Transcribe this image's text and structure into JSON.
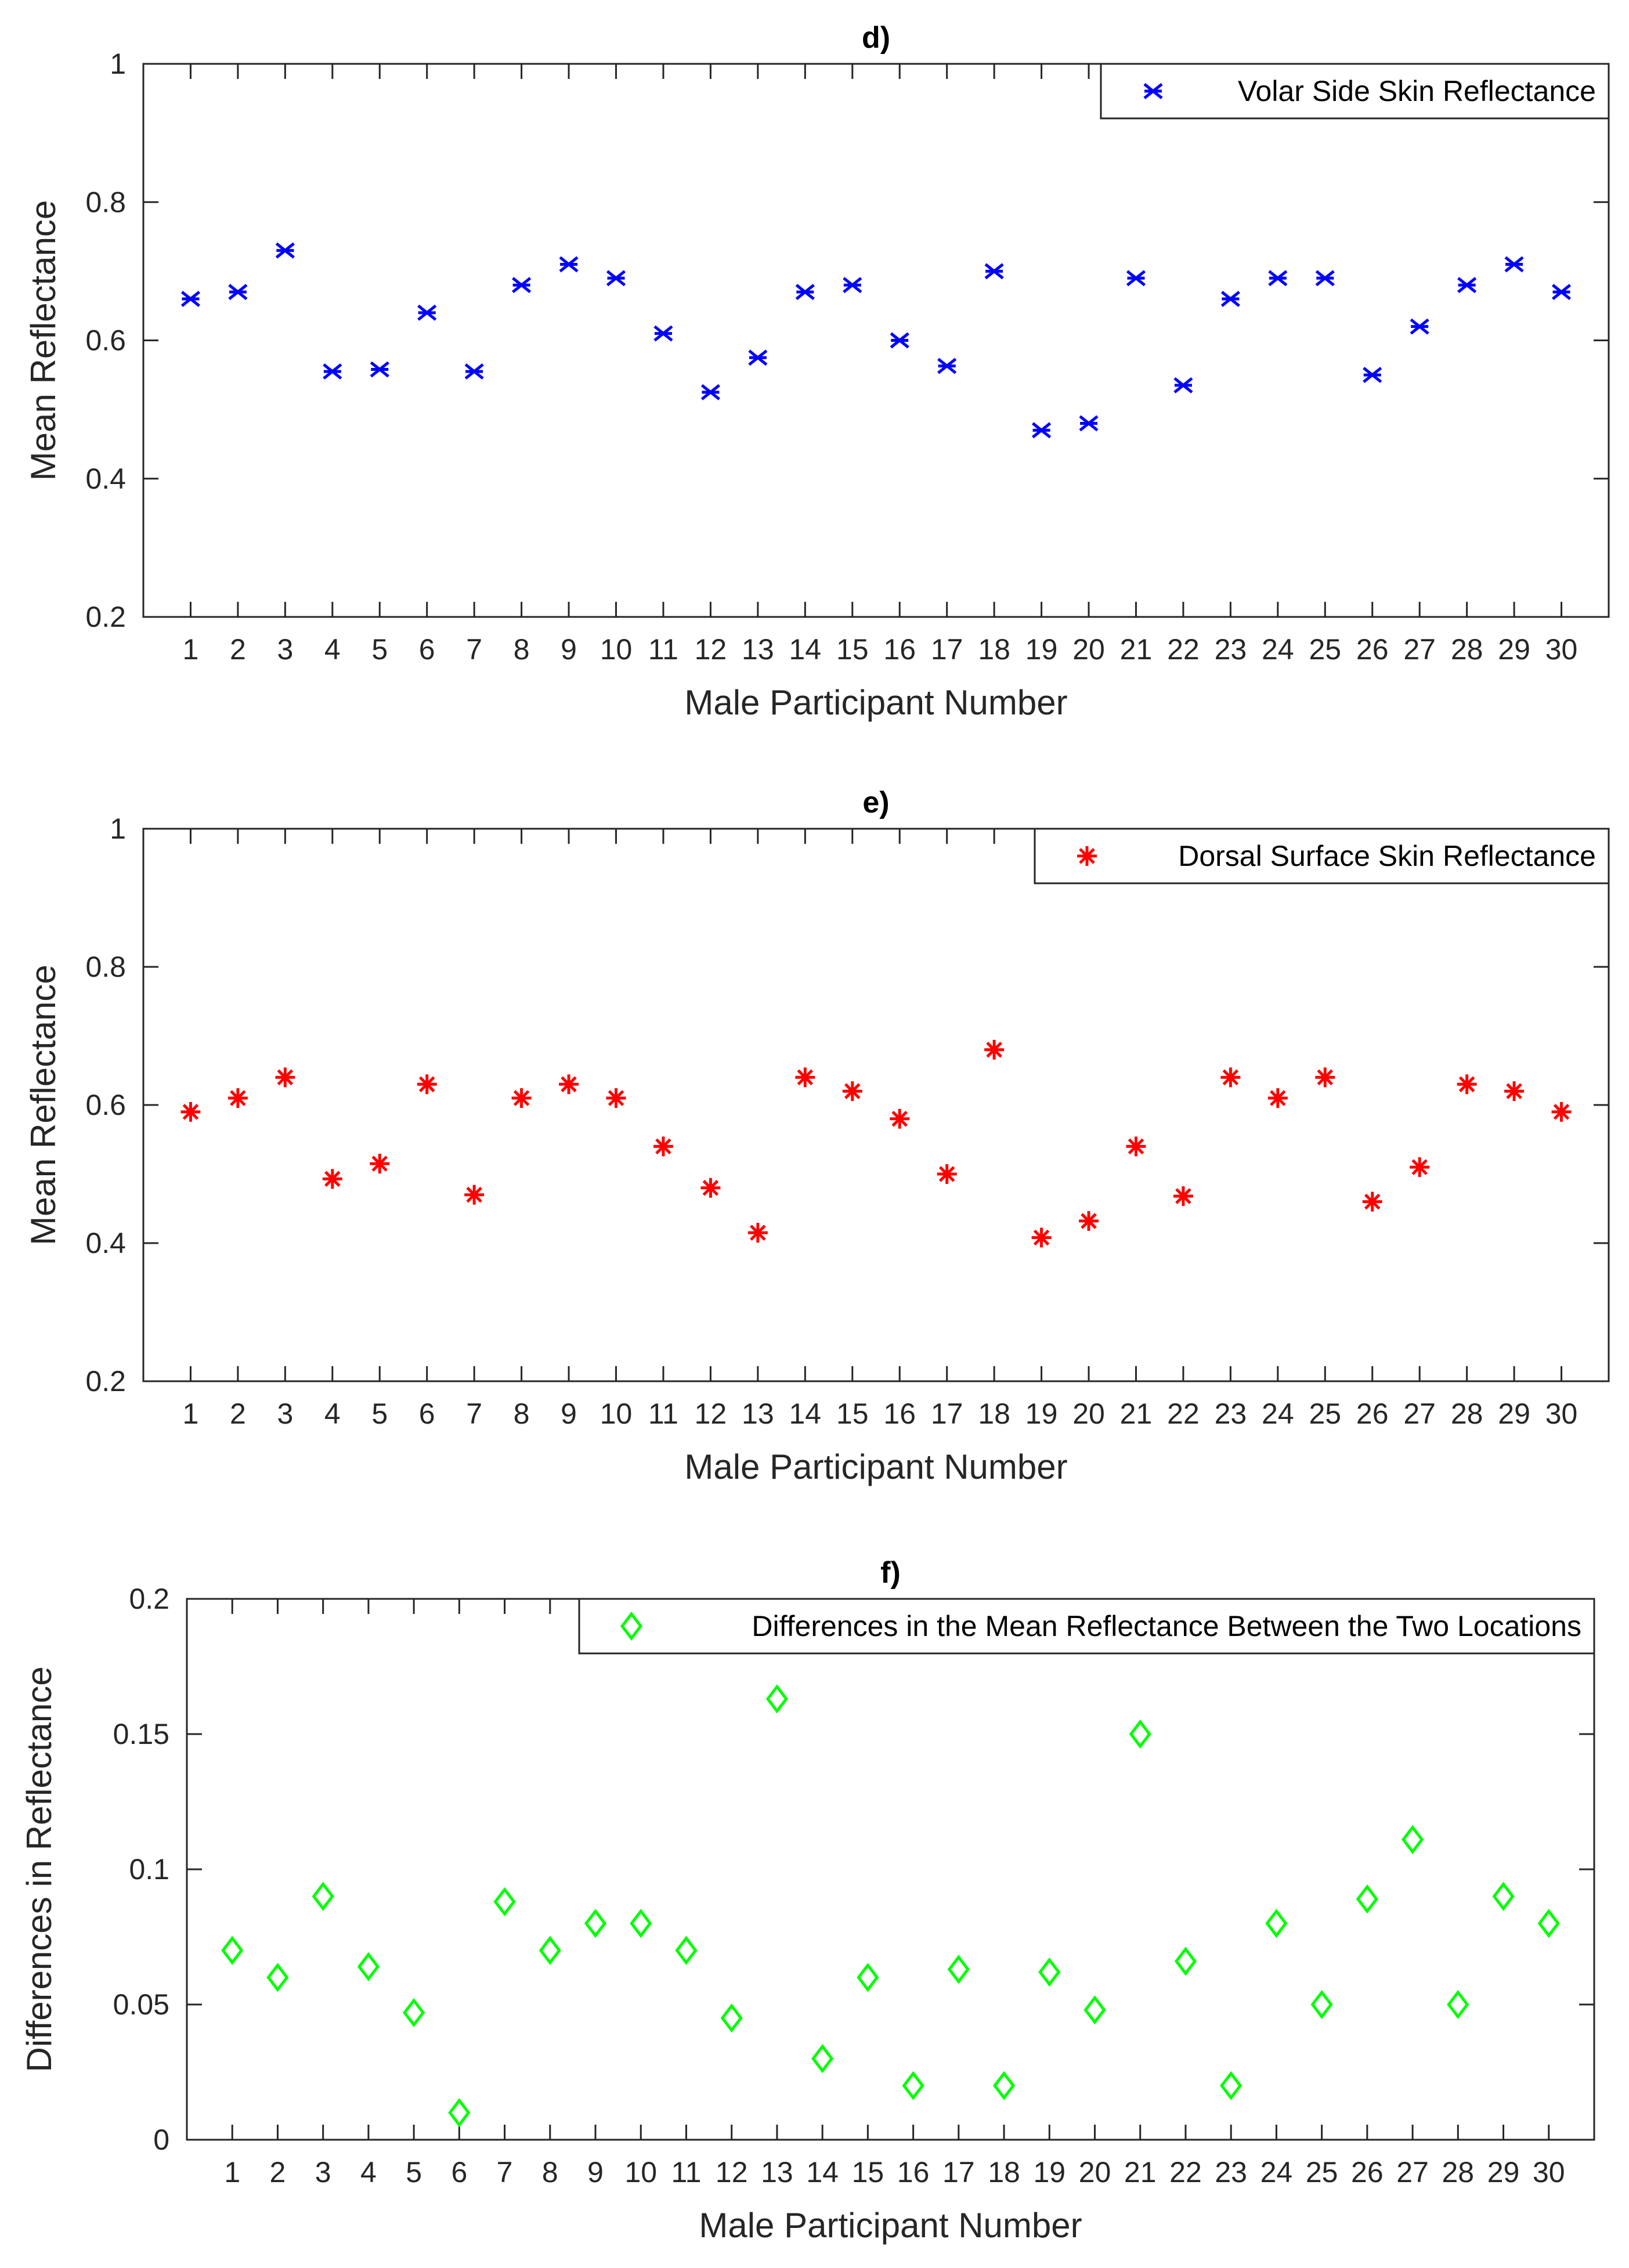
{
  "colors": {
    "axis": "#262626",
    "background": "#ffffff",
    "series_d": "#0000ff",
    "series_e": "#ff0000",
    "series_f": "#00ff00"
  },
  "chart_data": [
    {
      "id": "d",
      "type": "scatter",
      "title": "d)",
      "xlabel": "Male Participant Number",
      "ylabel": "Mean Reflectance",
      "xlim": [
        0,
        31
      ],
      "ylim": [
        0.2,
        1
      ],
      "yticks": [
        0.2,
        0.4,
        0.6,
        0.8,
        1
      ],
      "yticklabels": [
        "0.2",
        "0.4",
        "0.6",
        "0.8",
        "1"
      ],
      "x": [
        1,
        2,
        3,
        4,
        5,
        6,
        7,
        8,
        9,
        10,
        11,
        12,
        13,
        14,
        15,
        16,
        17,
        18,
        19,
        20,
        21,
        22,
        23,
        24,
        25,
        26,
        27,
        28,
        29,
        30
      ],
      "xticklabels": [
        "1",
        "2",
        "3",
        "4",
        "5",
        "6",
        "7",
        "8",
        "9",
        "10",
        "11",
        "12",
        "13",
        "14",
        "15",
        "16",
        "17",
        "18",
        "19",
        "20",
        "21",
        "22",
        "23",
        "24",
        "25",
        "26",
        "27",
        "28",
        "29",
        "30"
      ],
      "grid": false,
      "legend_position": "top-right",
      "series": [
        {
          "name": "Volar Side Skin Reflectance",
          "marker": "x",
          "color": "#0000ff",
          "values": [
            0.66,
            0.67,
            0.73,
            0.555,
            0.558,
            0.64,
            0.555,
            0.68,
            0.71,
            0.69,
            0.61,
            0.525,
            0.575,
            0.67,
            0.68,
            0.6,
            0.563,
            0.7,
            0.47,
            0.48,
            0.69,
            0.535,
            0.66,
            0.69,
            0.69,
            0.55,
            0.62,
            0.68,
            0.71,
            0.67
          ]
        }
      ]
    },
    {
      "id": "e",
      "type": "scatter",
      "title": "e)",
      "xlabel": "Male Participant Number",
      "ylabel": "Mean Reflectance",
      "xlim": [
        0,
        31
      ],
      "ylim": [
        0.2,
        1
      ],
      "yticks": [
        0.2,
        0.4,
        0.6,
        0.8,
        1
      ],
      "yticklabels": [
        "0.2",
        "0.4",
        "0.6",
        "0.8",
        "1"
      ],
      "x": [
        1,
        2,
        3,
        4,
        5,
        6,
        7,
        8,
        9,
        10,
        11,
        12,
        13,
        14,
        15,
        16,
        17,
        18,
        19,
        20,
        21,
        22,
        23,
        24,
        25,
        26,
        27,
        28,
        29,
        30
      ],
      "xticklabels": [
        "1",
        "2",
        "3",
        "4",
        "5",
        "6",
        "7",
        "8",
        "9",
        "10",
        "11",
        "12",
        "13",
        "14",
        "15",
        "16",
        "17",
        "18",
        "19",
        "20",
        "21",
        "22",
        "23",
        "24",
        "25",
        "26",
        "27",
        "28",
        "29",
        "30"
      ],
      "grid": false,
      "legend_position": "top-right",
      "series": [
        {
          "name": "Dorsal Surface Skin Reflectance",
          "marker": "asterisk",
          "color": "#ff0000",
          "values": [
            0.59,
            0.61,
            0.64,
            0.493,
            0.515,
            0.63,
            0.47,
            0.61,
            0.63,
            0.61,
            0.54,
            0.48,
            0.415,
            0.64,
            0.62,
            0.58,
            0.5,
            0.68,
            0.408,
            0.432,
            0.54,
            0.468,
            0.64,
            0.61,
            0.64,
            0.46,
            0.51,
            0.63,
            0.62,
            0.59
          ]
        }
      ]
    },
    {
      "id": "f",
      "type": "scatter",
      "title": "f)",
      "xlabel": "Male Participant Number",
      "ylabel": "Differences in Reflectance",
      "xlim": [
        0,
        31
      ],
      "ylim": [
        0,
        0.2
      ],
      "yticks": [
        0,
        0.05,
        0.1,
        0.15,
        0.2
      ],
      "yticklabels": [
        "0",
        "0.05",
        "0.1",
        "0.15",
        "0.2"
      ],
      "x": [
        1,
        2,
        3,
        4,
        5,
        6,
        7,
        8,
        9,
        10,
        11,
        12,
        13,
        14,
        15,
        16,
        17,
        18,
        19,
        20,
        21,
        22,
        23,
        24,
        25,
        26,
        27,
        28,
        29,
        30
      ],
      "xticklabels": [
        "1",
        "2",
        "3",
        "4",
        "5",
        "6",
        "7",
        "8",
        "9",
        "10",
        "11",
        "12",
        "13",
        "14",
        "15",
        "16",
        "17",
        "18",
        "19",
        "20",
        "21",
        "22",
        "23",
        "24",
        "25",
        "26",
        "27",
        "28",
        "29",
        "30"
      ],
      "grid": false,
      "legend_position": "top-right",
      "series": [
        {
          "name": "Differences in the Mean Reflectance Between the Two Locations",
          "marker": "diamond",
          "color": "#00ff00",
          "values": [
            0.07,
            0.06,
            0.09,
            0.064,
            0.047,
            0.01,
            0.088,
            0.07,
            0.08,
            0.08,
            0.07,
            0.045,
            0.163,
            0.03,
            0.06,
            0.02,
            0.063,
            0.02,
            0.062,
            0.048,
            0.15,
            0.066,
            0.02,
            0.08,
            0.05,
            0.089,
            0.111,
            0.05,
            0.09,
            0.08
          ]
        }
      ]
    }
  ]
}
